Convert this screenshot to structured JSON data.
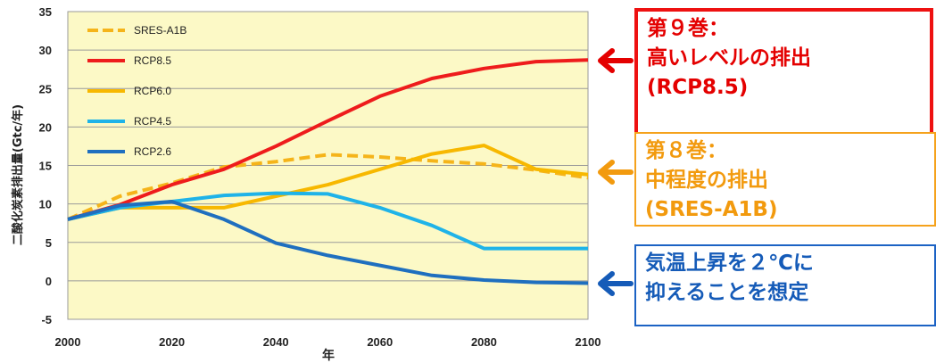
{
  "chart_data": {
    "type": "line",
    "title": "",
    "xlabel": "年",
    "ylabel": "二酸化炭素排出量(Gtc/年)",
    "xlim": [
      2000,
      2100
    ],
    "ylim": [
      -5,
      35
    ],
    "x_ticks": [
      "2000",
      "2020",
      "2040",
      "2060",
      "2080",
      "2100"
    ],
    "y_ticks": [
      "35",
      "30",
      "25",
      "20",
      "15",
      "10",
      "5",
      "0",
      "-5"
    ],
    "grid": true,
    "legend_position": "top-left",
    "plot_background": "#fcf9c6",
    "x": [
      2000,
      2010,
      2020,
      2030,
      2040,
      2050,
      2060,
      2070,
      2080,
      2090,
      2100
    ],
    "series": [
      {
        "name": "SRES-A1B",
        "color": "#f5b41a",
        "dashed": true,
        "values": [
          8,
          11,
          12.7,
          14.8,
          15.5,
          16.4,
          16.1,
          15.6,
          15.2,
          14.4,
          13.4
        ]
      },
      {
        "name": "RCP8.5",
        "color": "#ee1c1c",
        "dashed": false,
        "values": [
          8,
          9.9,
          12.5,
          14.5,
          17.5,
          20.8,
          24,
          26.3,
          27.6,
          28.5,
          28.7
        ]
      },
      {
        "name": "RCP6.0",
        "color": "#f7b800",
        "dashed": false,
        "values": [
          8,
          9.5,
          9.5,
          9.5,
          11,
          12.5,
          14.5,
          16.5,
          17.6,
          14.5,
          13.8
        ]
      },
      {
        "name": "RCP4.5",
        "color": "#1fb3e8",
        "dashed": false,
        "values": [
          8,
          9.5,
          10.3,
          11.1,
          11.4,
          11.3,
          9.5,
          7.2,
          4.2,
          4.2,
          4.2
        ]
      },
      {
        "name": "RCP2.6",
        "color": "#1f6fbf",
        "dashed": false,
        "values": [
          8,
          9.8,
          10.3,
          8,
          4.9,
          3.3,
          2,
          0.7,
          0.1,
          -0.2,
          -0.3
        ]
      }
    ]
  },
  "callouts": {
    "rcp85": {
      "line1": "第９巻：",
      "line2": "高いレベルの排出",
      "line3": "(RCP8.5)",
      "color": "#e40000"
    },
    "sres": {
      "line1": "第８巻：",
      "line2": "中程度の排出",
      "line3": "(SRES-A1B)",
      "color": "#f29a0e"
    },
    "two_degree": {
      "line1": "気温上昇を２℃に",
      "line2": "抑えることを想定",
      "color": "#155bb8"
    }
  }
}
